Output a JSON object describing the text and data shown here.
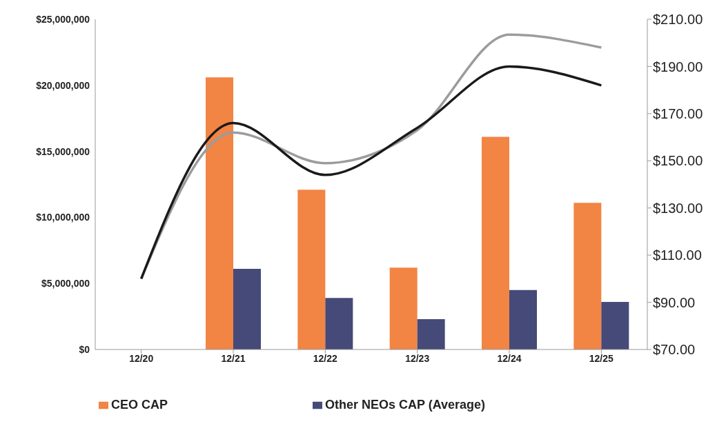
{
  "chart_data": {
    "type": "bar",
    "categories": [
      "12/20",
      "12/21",
      "12/22",
      "12/23",
      "12/24",
      "12/25"
    ],
    "series": [
      {
        "name": "CEO CAP",
        "color": "#f28444",
        "values": [
          null,
          20600000,
          12100000,
          6200000,
          16100000,
          11100000
        ]
      },
      {
        "name": "Other NEOs CAP (Average)",
        "color": "#454a78",
        "values": [
          null,
          6100000,
          3900000,
          2300000,
          4500000,
          3600000
        ]
      },
      {
        "type": "line",
        "axis": "y2",
        "color": "#9a9c9f",
        "values": [
          100,
          162,
          149,
          163,
          203.5,
          198
        ]
      },
      {
        "type": "line",
        "axis": "y2",
        "color": "#1a1a1a",
        "values": [
          100,
          166,
          144,
          164,
          190,
          182
        ]
      }
    ],
    "ylim": [
      0,
      25000000
    ],
    "yticks": [
      {
        "value": 0,
        "label": "$0"
      },
      {
        "value": 5000000,
        "label": "$5,000,000"
      },
      {
        "value": 10000000,
        "label": "$10,000,000"
      },
      {
        "value": 15000000,
        "label": "$15,000,000"
      },
      {
        "value": 20000000,
        "label": "$20,000,000"
      },
      {
        "value": 25000000,
        "label": "$25,000,000"
      }
    ],
    "y2lim": [
      70,
      210
    ],
    "y2ticks": [
      {
        "value": 70,
        "label": "$70.00"
      },
      {
        "value": 90,
        "label": "$90.00"
      },
      {
        "value": 110,
        "label": "$110.00"
      },
      {
        "value": 130,
        "label": "$130.00"
      },
      {
        "value": 150,
        "label": "$150.00"
      },
      {
        "value": 170,
        "label": "$170.00"
      },
      {
        "value": 190,
        "label": "$190.00"
      },
      {
        "value": 210,
        "label": "$210.00"
      }
    ],
    "grid": false,
    "legend": "bottom"
  }
}
